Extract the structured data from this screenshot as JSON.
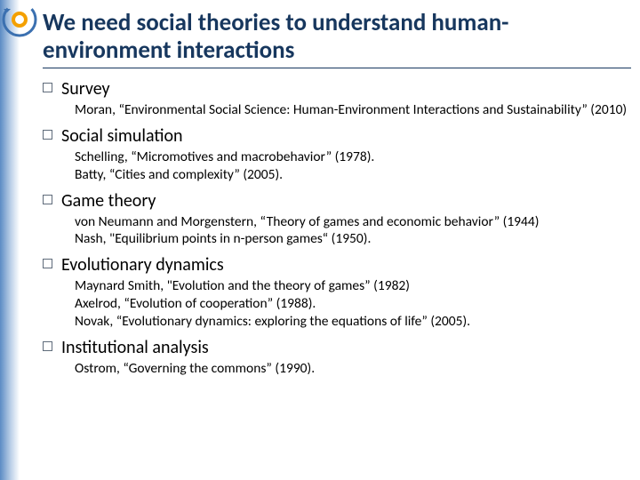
{
  "colors": {
    "title": "#17375e",
    "accent_gradient_from": "#5b8bc4",
    "accent_gradient_to": "#ffffff",
    "bullet_border": "#5e6b7a",
    "text": "#000000",
    "background": "#ffffff"
  },
  "typography": {
    "title_fontsize": 27,
    "title_weight": 700,
    "item_fontsize": 20,
    "ref_fontsize": 15.5,
    "font_family": "Calibri"
  },
  "title": "We need social theories to understand human-environment interactions",
  "items": [
    {
      "title": "Survey",
      "refs": [
        "Moran, “Environmental Social Science: Human-Environment Interactions and Sustainability” (2010)"
      ]
    },
    {
      "title": "Social simulation",
      "refs": [
        "Schelling, “Micromotives and macrobehavior” (1978).",
        "Batty, “Cities and complexity” (2005)."
      ]
    },
    {
      "title": "Game theory",
      "refs": [
        "von Neumann and Morgenstern, “Theory of games and economic behavior” (1944)",
        "Nash, \"Equilibrium points in n-person games“ (1950)."
      ]
    },
    {
      "title": "Evolutionary dynamics",
      "refs": [
        "Maynard Smith, \"Evolution and the theory of games” (1982)",
        "Axelrod, “Evolution of cooperation” (1988).",
        "Novak, “Evolutionary dynamics: exploring the equations of life” (2005)."
      ]
    },
    {
      "title": "Institutional analysis",
      "refs": [
        "Ostrom, “Governing the commons” (1990)."
      ]
    }
  ]
}
